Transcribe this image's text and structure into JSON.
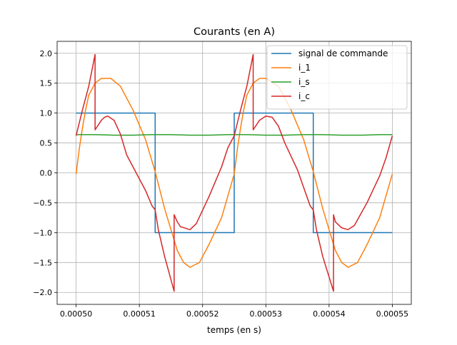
{
  "chart_data": {
    "type": "line",
    "title": "Courants (en A)",
    "xlabel": "temps (en s)",
    "ylabel": "",
    "xlim": [
      0.000497,
      0.000553
    ],
    "ylim": [
      -2.2,
      2.2
    ],
    "grid": true,
    "legend_position": "top-right",
    "x_ticks": [
      {
        "value": 0.0005,
        "label": "0.00050"
      },
      {
        "value": 0.00051,
        "label": "0.00051"
      },
      {
        "value": 0.00052,
        "label": "0.00052"
      },
      {
        "value": 0.00053,
        "label": "0.00053"
      },
      {
        "value": 0.00054,
        "label": "0.00054"
      },
      {
        "value": 0.00055,
        "label": "0.00055"
      }
    ],
    "y_ticks": [
      {
        "value": 2.0,
        "label": "2.0"
      },
      {
        "value": 1.5,
        "label": "1.5"
      },
      {
        "value": 1.0,
        "label": "1.0"
      },
      {
        "value": 0.5,
        "label": "0.5"
      },
      {
        "value": 0.0,
        "label": "0.0"
      },
      {
        "value": -0.5,
        "label": "−0.5"
      },
      {
        "value": -1.0,
        "label": "−1.0"
      },
      {
        "value": -1.5,
        "label": "−1.5"
      },
      {
        "value": -2.0,
        "label": "−2.0"
      }
    ],
    "series": [
      {
        "name": "signal de commande",
        "color": "#1f77b4",
        "points": [
          [
            0.0005,
            1.0
          ],
          [
            0.0005125,
            1.0
          ],
          [
            0.0005125,
            -1.0
          ],
          [
            0.000525,
            -1.0
          ],
          [
            0.000525,
            1.0
          ],
          [
            0.0005375,
            1.0
          ],
          [
            0.0005375,
            -1.0
          ],
          [
            0.00055,
            -1.0
          ]
        ]
      },
      {
        "name": "i_1",
        "color": "#ff7f0e",
        "points": [
          [
            0.0005,
            -0.02
          ],
          [
            0.0005005,
            0.4
          ],
          [
            0.000501,
            0.75
          ],
          [
            0.0005015,
            1.05
          ],
          [
            0.000502,
            1.3
          ],
          [
            0.000503,
            1.5
          ],
          [
            0.000504,
            1.58
          ],
          [
            0.0005055,
            1.58
          ],
          [
            0.000507,
            1.45
          ],
          [
            0.000509,
            1.05
          ],
          [
            0.000511,
            0.55
          ],
          [
            0.0005125,
            0.02
          ],
          [
            0.000514,
            -0.6
          ],
          [
            0.000515,
            -0.95
          ],
          [
            0.000516,
            -1.3
          ],
          [
            0.000517,
            -1.5
          ],
          [
            0.000518,
            -1.58
          ],
          [
            0.0005195,
            -1.5
          ],
          [
            0.000521,
            -1.2
          ],
          [
            0.000523,
            -0.75
          ],
          [
            0.000525,
            -0.02
          ],
          [
            0.0005255,
            0.4
          ],
          [
            0.000526,
            0.75
          ],
          [
            0.0005265,
            1.05
          ],
          [
            0.000527,
            1.3
          ],
          [
            0.000528,
            1.5
          ],
          [
            0.000529,
            1.58
          ],
          [
            0.00053,
            1.58
          ],
          [
            0.000532,
            1.45
          ],
          [
            0.000534,
            1.05
          ],
          [
            0.000536,
            0.55
          ],
          [
            0.0005375,
            0.02
          ],
          [
            0.000539,
            -0.6
          ],
          [
            0.00054,
            -0.95
          ],
          [
            0.000541,
            -1.3
          ],
          [
            0.000542,
            -1.5
          ],
          [
            0.000543,
            -1.58
          ],
          [
            0.0005445,
            -1.5
          ],
          [
            0.000546,
            -1.2
          ],
          [
            0.000548,
            -0.75
          ],
          [
            0.00055,
            -0.02
          ]
        ]
      },
      {
        "name": "i_s",
        "color": "#2ca02c",
        "points": [
          [
            0.0005,
            0.64
          ],
          [
            0.000503,
            0.64
          ],
          [
            0.000506,
            0.63
          ],
          [
            0.000509,
            0.63
          ],
          [
            0.000512,
            0.64
          ],
          [
            0.000515,
            0.64
          ],
          [
            0.000518,
            0.63
          ],
          [
            0.000521,
            0.63
          ],
          [
            0.000524,
            0.64
          ],
          [
            0.000527,
            0.64
          ],
          [
            0.00053,
            0.63
          ],
          [
            0.000533,
            0.63
          ],
          [
            0.000536,
            0.64
          ],
          [
            0.000539,
            0.64
          ],
          [
            0.000542,
            0.63
          ],
          [
            0.000545,
            0.63
          ],
          [
            0.000548,
            0.64
          ],
          [
            0.00055,
            0.64
          ]
        ]
      },
      {
        "name": "i_c",
        "color": "#d62728",
        "points": [
          [
            0.0005,
            0.62
          ],
          [
            0.000501,
            1.05
          ],
          [
            0.000502,
            1.45
          ],
          [
            0.000503,
            1.98
          ],
          [
            0.000503,
            0.72
          ],
          [
            0.000504,
            0.88
          ],
          [
            0.0005045,
            0.93
          ],
          [
            0.000505,
            0.95
          ],
          [
            0.000506,
            0.88
          ],
          [
            0.000507,
            0.65
          ],
          [
            0.000508,
            0.3
          ],
          [
            0.00051,
            -0.1
          ],
          [
            0.000511,
            -0.3
          ],
          [
            0.000512,
            -0.55
          ],
          [
            0.0005125,
            -0.62
          ],
          [
            0.000513,
            -0.95
          ],
          [
            0.000514,
            -1.4
          ],
          [
            0.0005155,
            -1.98
          ],
          [
            0.0005155,
            -0.7
          ],
          [
            0.000516,
            -0.82
          ],
          [
            0.0005165,
            -0.9
          ],
          [
            0.000518,
            -0.95
          ],
          [
            0.000519,
            -0.85
          ],
          [
            0.000521,
            -0.4
          ],
          [
            0.000523,
            0.1
          ],
          [
            0.000524,
            0.42
          ],
          [
            0.000525,
            0.62
          ],
          [
            0.000526,
            1.05
          ],
          [
            0.000527,
            1.45
          ],
          [
            0.000528,
            1.98
          ],
          [
            0.000528,
            0.72
          ],
          [
            0.000529,
            0.88
          ],
          [
            0.00053,
            0.95
          ],
          [
            0.000531,
            0.93
          ],
          [
            0.000532,
            0.78
          ],
          [
            0.000533,
            0.5
          ],
          [
            0.000535,
            0.05
          ],
          [
            0.000536,
            -0.25
          ],
          [
            0.000537,
            -0.55
          ],
          [
            0.0005375,
            -0.62
          ],
          [
            0.000538,
            -0.95
          ],
          [
            0.000539,
            -1.4
          ],
          [
            0.0005407,
            -1.98
          ],
          [
            0.0005407,
            -0.7
          ],
          [
            0.000541,
            -0.82
          ],
          [
            0.000542,
            -0.92
          ],
          [
            0.000543,
            -0.95
          ],
          [
            0.000544,
            -0.88
          ],
          [
            0.000546,
            -0.5
          ],
          [
            0.000548,
            -0.05
          ],
          [
            0.000549,
            0.25
          ],
          [
            0.00055,
            0.62
          ]
        ]
      }
    ]
  }
}
